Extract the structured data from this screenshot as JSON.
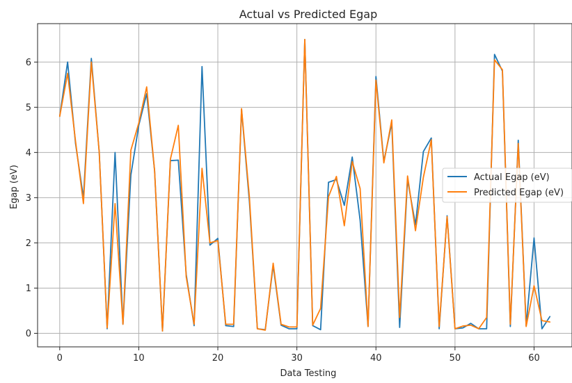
{
  "chart_data": {
    "type": "line",
    "title": "Actual vs Predicted Egap",
    "xlabel": "Data Testing",
    "ylabel": "Egap (eV)",
    "xlim": [
      -2.8,
      64.8
    ],
    "ylim": [
      -0.3,
      6.85
    ],
    "xticks": [
      0,
      10,
      20,
      30,
      40,
      50,
      60
    ],
    "yticks": [
      0,
      1,
      2,
      3,
      4,
      5,
      6
    ],
    "grid": true,
    "legend_position": "center-right",
    "x": [
      0,
      1,
      2,
      3,
      4,
      5,
      6,
      7,
      8,
      9,
      10,
      11,
      12,
      13,
      14,
      15,
      16,
      17,
      18,
      19,
      20,
      21,
      22,
      23,
      24,
      25,
      26,
      27,
      28,
      29,
      30,
      31,
      32,
      33,
      34,
      35,
      36,
      37,
      38,
      39,
      40,
      41,
      42,
      43,
      44,
      45,
      46,
      47,
      48,
      49,
      50,
      51,
      52,
      53,
      54,
      55,
      56,
      57,
      58,
      59,
      60,
      61,
      62
    ],
    "series": [
      {
        "name": "Actual Egap (eV)",
        "color": "#1f77b4",
        "values": [
          4.8,
          6.0,
          4.2,
          3.0,
          6.08,
          4.0,
          0.1,
          4.0,
          0.2,
          3.5,
          4.6,
          5.3,
          3.6,
          0.05,
          3.82,
          3.83,
          1.3,
          0.17,
          5.9,
          1.95,
          2.1,
          0.17,
          0.15,
          4.95,
          2.9,
          0.1,
          0.08,
          1.5,
          0.18,
          0.1,
          0.1,
          6.5,
          0.17,
          0.08,
          3.34,
          3.4,
          2.83,
          3.9,
          2.5,
          0.15,
          5.68,
          3.8,
          4.65,
          0.13,
          3.4,
          2.4,
          4.02,
          4.32,
          0.1,
          2.6,
          0.1,
          0.12,
          0.22,
          0.1,
          0.1,
          6.17,
          5.8,
          0.15,
          4.27,
          0.17,
          2.11,
          0.1,
          0.37
        ]
      },
      {
        "name": "Predicted Egap (eV)",
        "color": "#ff7f0e",
        "values": [
          4.8,
          5.75,
          4.25,
          2.87,
          6.0,
          4.0,
          0.12,
          2.87,
          0.2,
          4.05,
          4.65,
          5.45,
          3.6,
          0.05,
          3.85,
          4.6,
          1.25,
          0.2,
          3.65,
          2.0,
          2.05,
          0.2,
          0.2,
          4.97,
          3.0,
          0.1,
          0.07,
          1.55,
          0.2,
          0.14,
          0.14,
          6.5,
          0.18,
          0.55,
          3.02,
          3.47,
          2.38,
          3.8,
          3.2,
          0.15,
          5.6,
          3.77,
          4.72,
          0.35,
          3.48,
          2.27,
          3.45,
          4.28,
          0.15,
          2.58,
          0.1,
          0.16,
          0.18,
          0.1,
          0.35,
          6.05,
          5.83,
          0.2,
          4.2,
          0.15,
          1.05,
          0.28,
          0.25
        ]
      }
    ]
  }
}
